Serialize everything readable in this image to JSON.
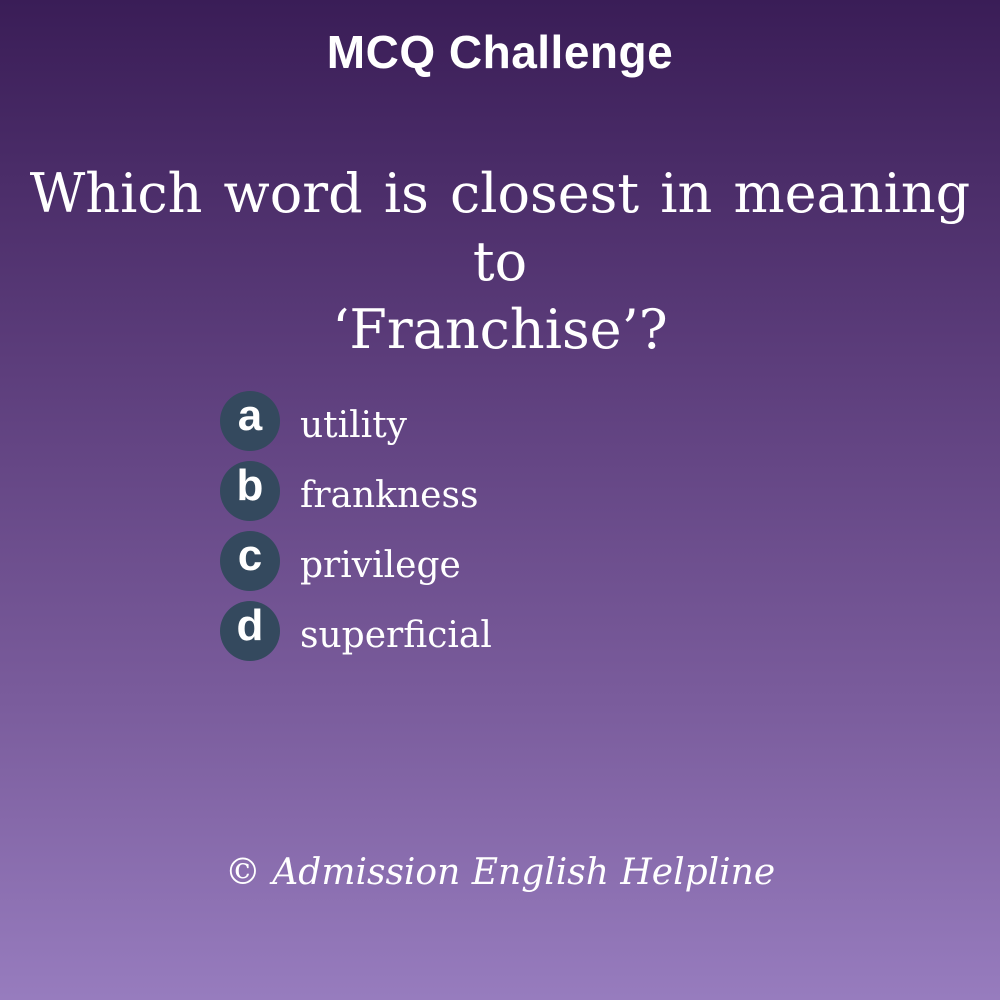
{
  "header": {
    "title": "MCQ Challenge"
  },
  "question": {
    "line1": "Which word is closest in meaning to",
    "line2": "‘Franchise’?"
  },
  "options": [
    {
      "letter": "a",
      "text": "utility"
    },
    {
      "letter": "b",
      "text": "frankness"
    },
    {
      "letter": "c",
      "text": "privilege"
    },
    {
      "letter": "d",
      "text": "superficial"
    }
  ],
  "footer": {
    "copyright": "© Admission English Helpline"
  },
  "colors": {
    "badge": "#34495e",
    "background_top": "#3a1d57",
    "background_bottom": "#977cbe",
    "text": "#ffffff"
  }
}
